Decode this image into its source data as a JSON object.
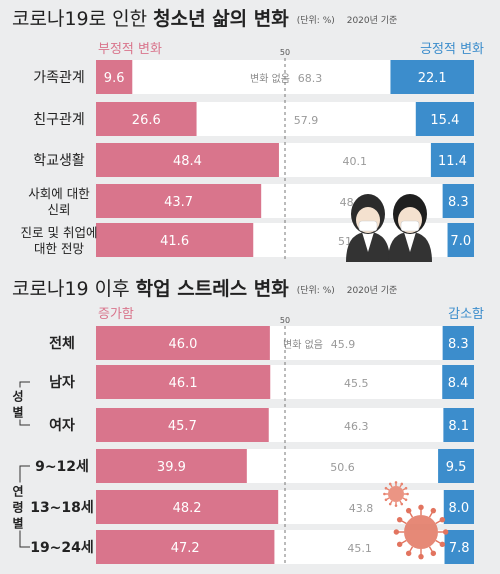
{
  "colors": {
    "negative": "#d9758c",
    "positive": "#3c8dcc",
    "white": "#ffffff",
    "background": "#ecedee",
    "title": "#222222",
    "unit": "#555555",
    "neutral_text": "#9a9a9a"
  },
  "icons": [
    "two-students-icon",
    "coronavirus-icon"
  ],
  "chart_data": [
    {
      "type": "bar",
      "title_prefix": "코로나19로 인한 ",
      "title_bold": "청소년 삶의 변화",
      "unit_label": "(단위: %)",
      "year_label": "2020년 기준",
      "left_legend": "부정적 변화",
      "right_legend": "긍정적 변화",
      "midpoint_label": "50",
      "neutral_legend": "변화 없음",
      "xlim": [
        0,
        100
      ],
      "categories": [
        "가족관계",
        "친구관계",
        "학교생활",
        "사회에 대한 신뢰",
        "진로 및 취업에 대한 전망"
      ],
      "category_lines": [
        [
          "가족관계"
        ],
        [
          "친구관계"
        ],
        [
          "학교생활"
        ],
        [
          "사회에 대한",
          "신뢰"
        ],
        [
          "진로 및 취업에",
          "대한 전망"
        ]
      ],
      "series": [
        {
          "name": "부정적 변화",
          "values": [
            9.6,
            26.6,
            48.4,
            43.7,
            41.6
          ]
        },
        {
          "name": "변화 없음",
          "values": [
            68.3,
            57.9,
            40.1,
            48.0,
            51.3
          ]
        },
        {
          "name": "긍정적 변화",
          "values": [
            22.1,
            15.4,
            11.4,
            8.3,
            7.0
          ]
        }
      ],
      "value_labels": {
        "left": [
          "9.6",
          "26.6",
          "48.4",
          "43.7",
          "41.6"
        ],
        "middle": [
          "68.3",
          "57.9",
          "40.1",
          "48.0",
          "51.3"
        ],
        "right": [
          "22.1",
          "15.4",
          "11.4",
          "8.3",
          "7.0"
        ]
      },
      "groups": []
    },
    {
      "type": "bar",
      "title_prefix": "코로나19 이후 ",
      "title_bold": "학업 스트레스 변화",
      "unit_label": "(단위: %)",
      "year_label": "2020년 기준",
      "left_legend": "증가함",
      "right_legend": "감소함",
      "midpoint_label": "50",
      "neutral_legend": "변화 없음",
      "xlim": [
        0,
        100
      ],
      "categories": [
        "전체",
        "남자",
        "여자",
        "9~12세",
        "13~18세",
        "19~24세"
      ],
      "category_lines": [
        [
          "전체"
        ],
        [
          "남자"
        ],
        [
          "여자"
        ],
        [
          "9~12세"
        ],
        [
          "13~18세"
        ],
        [
          "19~24세"
        ]
      ],
      "series": [
        {
          "name": "증가함",
          "values": [
            46.0,
            46.1,
            45.7,
            39.9,
            48.2,
            47.2
          ]
        },
        {
          "name": "변화 없음",
          "values": [
            45.9,
            45.5,
            46.3,
            50.6,
            43.8,
            45.1
          ]
        },
        {
          "name": "감소함",
          "values": [
            8.3,
            8.4,
            8.1,
            9.5,
            8.0,
            7.8
          ]
        }
      ],
      "value_labels": {
        "left": [
          "46.0",
          "46.1",
          "45.7",
          "39.9",
          "48.2",
          "47.2"
        ],
        "middle": [
          "45.9",
          "45.5",
          "46.3",
          "50.6",
          "43.8",
          "45.1"
        ],
        "right": [
          "8.3",
          "8.4",
          "8.1",
          "9.5",
          "8.0",
          "7.8"
        ]
      },
      "groups": [
        {
          "label_chars": [
            "성",
            "별"
          ],
          "rows": [
            1,
            2
          ]
        },
        {
          "label_chars": [
            "연",
            "령",
            "별"
          ],
          "rows": [
            3,
            5
          ]
        }
      ]
    }
  ]
}
